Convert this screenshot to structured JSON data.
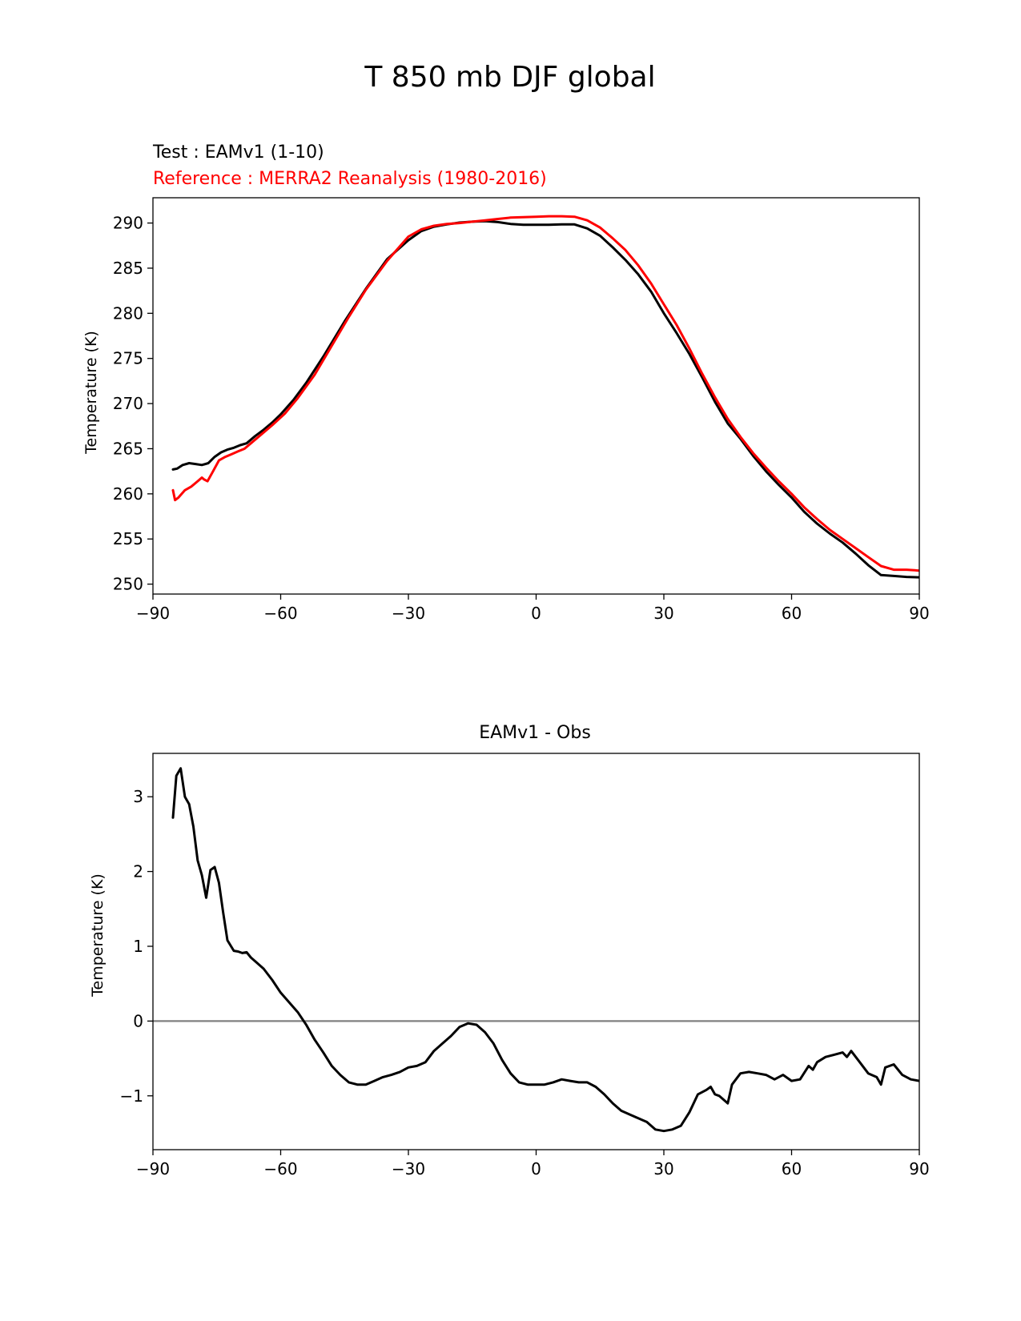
{
  "figure_title": "T 850 mb DJF global",
  "colors": {
    "test": "#000000",
    "reference": "#ff0000",
    "zero_line": "#808080",
    "axes": "#000000"
  },
  "chart_data": [
    {
      "type": "line",
      "title_left_line1": "Test : EAMv1 (1-10)",
      "title_left_line2": "Reference : MERRA2 Reanalysis (1980-2016)",
      "xlabel": "",
      "ylabel": "Temperature (K)",
      "xlim": [
        -90,
        90
      ],
      "ylim": [
        248.9,
        292.8
      ],
      "xticks": [
        -90,
        -60,
        -30,
        0,
        30,
        60,
        90
      ],
      "xtick_labels": [
        "−90",
        "−60",
        "−30",
        "0",
        "30",
        "60",
        "90"
      ],
      "yticks": [
        250,
        255,
        260,
        265,
        270,
        275,
        280,
        285,
        290
      ],
      "ytick_labels": [
        "250",
        "255",
        "260",
        "265",
        "270",
        "275",
        "280",
        "285",
        "290"
      ],
      "series": [
        {
          "name": "Test : EAMv1 (1-10)",
          "color": "#000000",
          "x": [
            -85.3,
            -84.3,
            -83.0,
            -81.5,
            -80.0,
            -78.5,
            -77.0,
            -75.5,
            -74.0,
            -72.5,
            -71.0,
            -69.5,
            -68.0,
            -66.0,
            -64.0,
            -62.0,
            -60.0,
            -57.0,
            -54.0,
            -50.0,
            -45.0,
            -40.0,
            -35.0,
            -30.0,
            -27.0,
            -24.0,
            -21.0,
            -18.0,
            -15.0,
            -12.0,
            -9.0,
            -6.0,
            -3.0,
            0.0,
            3.0,
            6.0,
            9.0,
            12.0,
            15.0,
            18.0,
            21.0,
            24.0,
            27.0,
            30.0,
            33.0,
            36.0,
            39.0,
            42.0,
            45.0,
            48.0,
            51.0,
            54.0,
            57.0,
            60.0,
            63.0,
            66.0,
            69.0,
            72.0,
            75.0,
            78.0,
            81.0,
            84.0,
            87.0,
            90.0
          ],
          "values": [
            262.7,
            262.8,
            263.2,
            263.4,
            263.3,
            263.2,
            263.4,
            264.1,
            264.6,
            264.9,
            265.1,
            265.4,
            265.6,
            266.4,
            267.1,
            267.9,
            268.8,
            270.4,
            272.3,
            275.2,
            279.1,
            282.7,
            286.0,
            288.1,
            289.1,
            289.6,
            289.85,
            290.05,
            290.15,
            290.2,
            290.1,
            289.9,
            289.8,
            289.8,
            289.8,
            289.85,
            289.85,
            289.4,
            288.6,
            287.3,
            285.9,
            284.3,
            282.4,
            280.0,
            277.8,
            275.5,
            272.9,
            270.2,
            267.8,
            266.1,
            264.2,
            262.5,
            261.0,
            259.6,
            258.0,
            256.7,
            255.6,
            254.6,
            253.4,
            252.1,
            251.0,
            250.9,
            250.8,
            250.75
          ],
          "linewidth": 3
        },
        {
          "name": "Reference : MERRA2 Reanalysis (1980-2016)",
          "color": "#ff0000",
          "x": [
            -85.3,
            -84.8,
            -84.0,
            -82.5,
            -81.0,
            -79.5,
            -78.5,
            -78.0,
            -77.2,
            -76.0,
            -74.5,
            -73.0,
            -71.5,
            -70.0,
            -68.5,
            -67.0,
            -65.0,
            -62.0,
            -59.0,
            -56.0,
            -52.0,
            -48.0,
            -44.0,
            -40.0,
            -35.0,
            -30.0,
            -27.0,
            -24.0,
            -21.0,
            -18.0,
            -15.0,
            -12.0,
            -9.0,
            -6.0,
            -3.0,
            0.0,
            3.0,
            6.0,
            9.0,
            12.0,
            15.0,
            18.0,
            21.0,
            24.0,
            27.0,
            30.0,
            33.0,
            36.0,
            39.0,
            42.0,
            45.0,
            48.0,
            51.0,
            54.0,
            57.0,
            60.0,
            63.0,
            66.0,
            69.0,
            72.0,
            75.0,
            78.0,
            81.0,
            84.0,
            87.0,
            90.0
          ],
          "values": [
            260.4,
            259.3,
            259.6,
            260.4,
            260.8,
            261.4,
            261.8,
            261.6,
            261.4,
            262.4,
            263.7,
            264.1,
            264.4,
            264.7,
            265.0,
            265.6,
            266.4,
            267.6,
            268.9,
            270.6,
            273.2,
            276.4,
            279.6,
            282.6,
            285.8,
            288.5,
            289.3,
            289.7,
            289.9,
            290.0,
            290.15,
            290.3,
            290.45,
            290.6,
            290.65,
            290.7,
            290.75,
            290.75,
            290.7,
            290.3,
            289.5,
            288.3,
            287.0,
            285.3,
            283.3,
            281.0,
            278.7,
            276.1,
            273.3,
            270.7,
            268.3,
            266.3,
            264.5,
            262.9,
            261.4,
            260.0,
            258.5,
            257.2,
            256.0,
            255.0,
            254.0,
            253.0,
            252.0,
            251.6,
            251.6,
            251.5
          ],
          "linewidth": 3
        }
      ]
    },
    {
      "type": "line",
      "title": "EAMv1 - Obs",
      "xlabel": "",
      "ylabel": "Temperature (K)",
      "xlim": [
        -90,
        90
      ],
      "ylim": [
        -1.72,
        3.58
      ],
      "xticks": [
        -90,
        -60,
        -30,
        0,
        30,
        60,
        90
      ],
      "xtick_labels": [
        "−90",
        "−60",
        "−30",
        "0",
        "30",
        "60",
        "90"
      ],
      "yticks": [
        -1,
        0,
        1,
        2,
        3
      ],
      "ytick_labels": [
        "−1",
        "0",
        "1",
        "2",
        "3"
      ],
      "zero_line": 0,
      "series": [
        {
          "name": "EAMv1 - Obs",
          "color": "#000000",
          "x": [
            -85.3,
            -84.5,
            -83.5,
            -82.5,
            -81.5,
            -80.5,
            -79.5,
            -78.5,
            -77.5,
            -76.5,
            -75.5,
            -74.5,
            -73.5,
            -72.5,
            -71.0,
            -70.0,
            -69.0,
            -68.0,
            -67.0,
            -66.0,
            -64.0,
            -62.0,
            -60.0,
            -58.0,
            -56.0,
            -54.0,
            -52.0,
            -50.0,
            -48.0,
            -46.0,
            -44.0,
            -42.0,
            -40.0,
            -38.0,
            -36.0,
            -34.0,
            -32.0,
            -30.0,
            -28.0,
            -26.0,
            -24.0,
            -22.0,
            -20.0,
            -18.0,
            -16.0,
            -14.0,
            -12.0,
            -10.0,
            -8.0,
            -6.0,
            -4.0,
            -2.0,
            0.0,
            2.0,
            4.0,
            6.0,
            8.0,
            10.0,
            12.0,
            14.0,
            16.0,
            18.0,
            20.0,
            22.0,
            24.0,
            26.0,
            28.0,
            30.0,
            32.0,
            34.0,
            36.0,
            38.0,
            40.0,
            41.0,
            42.0,
            43.0,
            44.0,
            45.0,
            46.0,
            48.0,
            50.0,
            52.0,
            54.0,
            56.0,
            58.0,
            60.0,
            62.0,
            64.0,
            65.0,
            66.0,
            68.0,
            70.0,
            72.0,
            73.0,
            74.0,
            76.0,
            78.0,
            80.0,
            81.0,
            82.0,
            84.0,
            86.0,
            88.0,
            90.0
          ],
          "values": [
            2.72,
            3.28,
            3.38,
            3.0,
            2.9,
            2.6,
            2.15,
            1.95,
            1.65,
            2.02,
            2.06,
            1.85,
            1.45,
            1.08,
            0.94,
            0.93,
            0.91,
            0.92,
            0.85,
            0.8,
            0.7,
            0.55,
            0.38,
            0.25,
            0.12,
            -0.05,
            -0.25,
            -0.42,
            -0.6,
            -0.72,
            -0.82,
            -0.85,
            -0.85,
            -0.8,
            -0.75,
            -0.72,
            -0.68,
            -0.62,
            -0.6,
            -0.55,
            -0.4,
            -0.3,
            -0.2,
            -0.08,
            -0.03,
            -0.05,
            -0.15,
            -0.3,
            -0.52,
            -0.7,
            -0.82,
            -0.85,
            -0.85,
            -0.85,
            -0.82,
            -0.78,
            -0.8,
            -0.82,
            -0.82,
            -0.88,
            -0.98,
            -1.1,
            -1.2,
            -1.25,
            -1.3,
            -1.35,
            -1.45,
            -1.47,
            -1.45,
            -1.4,
            -1.22,
            -0.98,
            -0.92,
            -0.88,
            -0.98,
            -1.0,
            -1.05,
            -1.1,
            -0.85,
            -0.7,
            -0.68,
            -0.7,
            -0.72,
            -0.78,
            -0.72,
            -0.8,
            -0.78,
            -0.6,
            -0.65,
            -0.55,
            -0.48,
            -0.45,
            -0.42,
            -0.48,
            -0.4,
            -0.55,
            -0.7,
            -0.75,
            -0.85,
            -0.62,
            -0.58,
            -0.72,
            -0.78,
            -0.8
          ],
          "linewidth": 3
        }
      ]
    }
  ]
}
